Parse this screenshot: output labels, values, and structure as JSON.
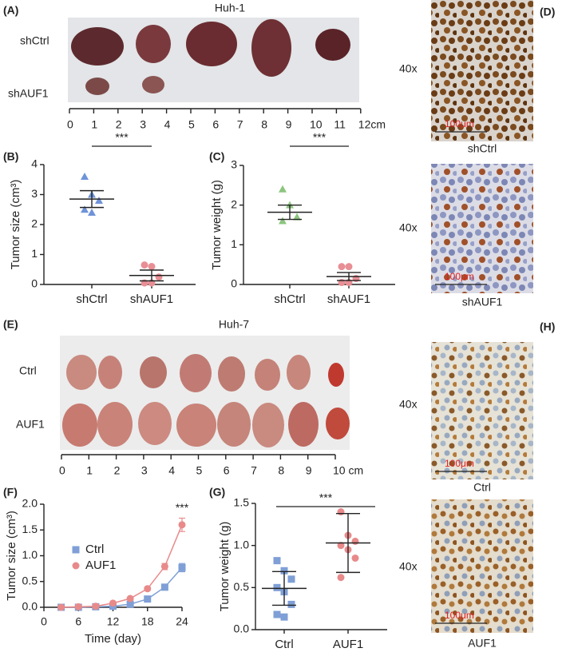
{
  "panels": {
    "A": {
      "label": "(A)",
      "title": "Huh-1",
      "rows": [
        "shCtrl",
        "shAUF1"
      ],
      "ruler": [
        0,
        1,
        2,
        3,
        4,
        5,
        6,
        7,
        8,
        9,
        10,
        11,
        {
          "value": 12,
          "label": "12cm"
        }
      ]
    },
    "D": {
      "label": "(D)",
      "magnification": [
        "40x",
        "40x"
      ],
      "captions": [
        "shCtrl",
        "shAUF1"
      ],
      "scale_bar": [
        "100μm",
        "100μm"
      ]
    },
    "E": {
      "label": "(E)",
      "title": "Huh-7",
      "rows": [
        "Ctrl",
        "AUF1"
      ],
      "ruler": [
        0,
        1,
        2,
        3,
        4,
        5,
        6,
        7,
        8,
        9,
        {
          "value": 10,
          "label": "10 cm"
        }
      ]
    },
    "H": {
      "label": "(H)",
      "magnification": [
        "40x",
        "40x"
      ],
      "captions": [
        "Ctrl",
        "AUF1"
      ],
      "scale_bar": [
        "100μm",
        "100μm"
      ]
    }
  },
  "chart_data": [
    {
      "type": "dot",
      "label": "(B)",
      "ylabel": "Tumor size (cm³)",
      "categories": [
        "shCtrl",
        "shAUF1"
      ],
      "groups": [
        {
          "color": "#6f93d8",
          "marker": "triangle",
          "values": [
            3.6,
            3.0,
            2.8,
            2.5,
            2.4
          ],
          "mean": 2.85,
          "error": 0.28
        },
        {
          "color": "#e88f95",
          "marker": "circle",
          "values": [
            0.65,
            0.6,
            0.25,
            0.05,
            0.05
          ],
          "mean": 0.3,
          "error": 0.18
        }
      ],
      "ylim": [
        0,
        4
      ],
      "yticks": [
        0,
        1,
        2,
        3,
        4
      ],
      "annotation": "***"
    },
    {
      "type": "dot",
      "label": "(C)",
      "ylabel": "Tumor weight (g)",
      "categories": [
        "shCtrl",
        "shAUF1"
      ],
      "groups": [
        {
          "color": "#8cc57e",
          "marker": "triangle",
          "values": [
            2.4,
            2.0,
            1.7,
            1.6
          ],
          "mean": 1.82,
          "error": 0.18
        },
        {
          "color": "#e88f95",
          "marker": "circle",
          "values": [
            0.45,
            0.45,
            0.15,
            0.05,
            0.05
          ],
          "mean": 0.2,
          "error": 0.1
        }
      ],
      "ylim": [
        0,
        3
      ],
      "yticks": [
        0,
        1,
        2,
        3
      ],
      "annotation": "***"
    },
    {
      "type": "line",
      "label": "(F)",
      "xlabel": "Time (day)",
      "ylabel": "Tumor size (cm³)",
      "x": [
        3,
        6,
        9,
        12,
        15,
        18,
        21,
        24
      ],
      "series": [
        {
          "name": "Ctrl",
          "color": "#7f9fd6",
          "marker": "square",
          "values": [
            0,
            0,
            0.01,
            0.02,
            0.06,
            0.16,
            0.39,
            0.77
          ],
          "errors": [
            0,
            0,
            0,
            0,
            0.01,
            0.02,
            0.03,
            0.08
          ]
        },
        {
          "name": "AUF1",
          "color": "#e88a8a",
          "marker": "circle",
          "values": [
            0,
            0.01,
            0.02,
            0.08,
            0.17,
            0.36,
            0.79,
            1.6
          ],
          "errors": [
            0,
            0,
            0,
            0.01,
            0.02,
            0.03,
            0.06,
            0.13
          ]
        }
      ],
      "xlim": [
        0,
        24
      ],
      "xticks": [
        0,
        6,
        12,
        18,
        24
      ],
      "ylim": [
        0,
        2
      ],
      "yticks": [
        {
          "value": 0,
          "label": "0.0"
        },
        0.5,
        {
          "value": 1,
          "label": "1.0"
        },
        1.5,
        {
          "value": 2,
          "label": "2.0"
        }
      ],
      "annotation": "***",
      "legend": "upper left"
    },
    {
      "type": "dot",
      "label": "(G)",
      "ylabel": "Tumor weight (g)",
      "categories": [
        "Ctrl",
        "AUF1"
      ],
      "groups": [
        {
          "color": "#7f9fd6",
          "marker": "square",
          "values": [
            0.82,
            0.7,
            0.6,
            0.5,
            0.45,
            0.3,
            0.18,
            0.15
          ],
          "mean": 0.49,
          "error": 0.2
        },
        {
          "color": "#e88a8a",
          "marker": "circle",
          "values": [
            1.4,
            1.12,
            1.05,
            1.0,
            0.95,
            0.85,
            0.62
          ],
          "mean": 1.03,
          "error": 0.35
        }
      ],
      "ylim": [
        0,
        1.5
      ],
      "yticks": [
        {
          "value": 0,
          "label": "0.0"
        },
        0.5,
        {
          "value": 1,
          "label": "1.0"
        },
        1.5
      ],
      "annotation": "***"
    }
  ]
}
